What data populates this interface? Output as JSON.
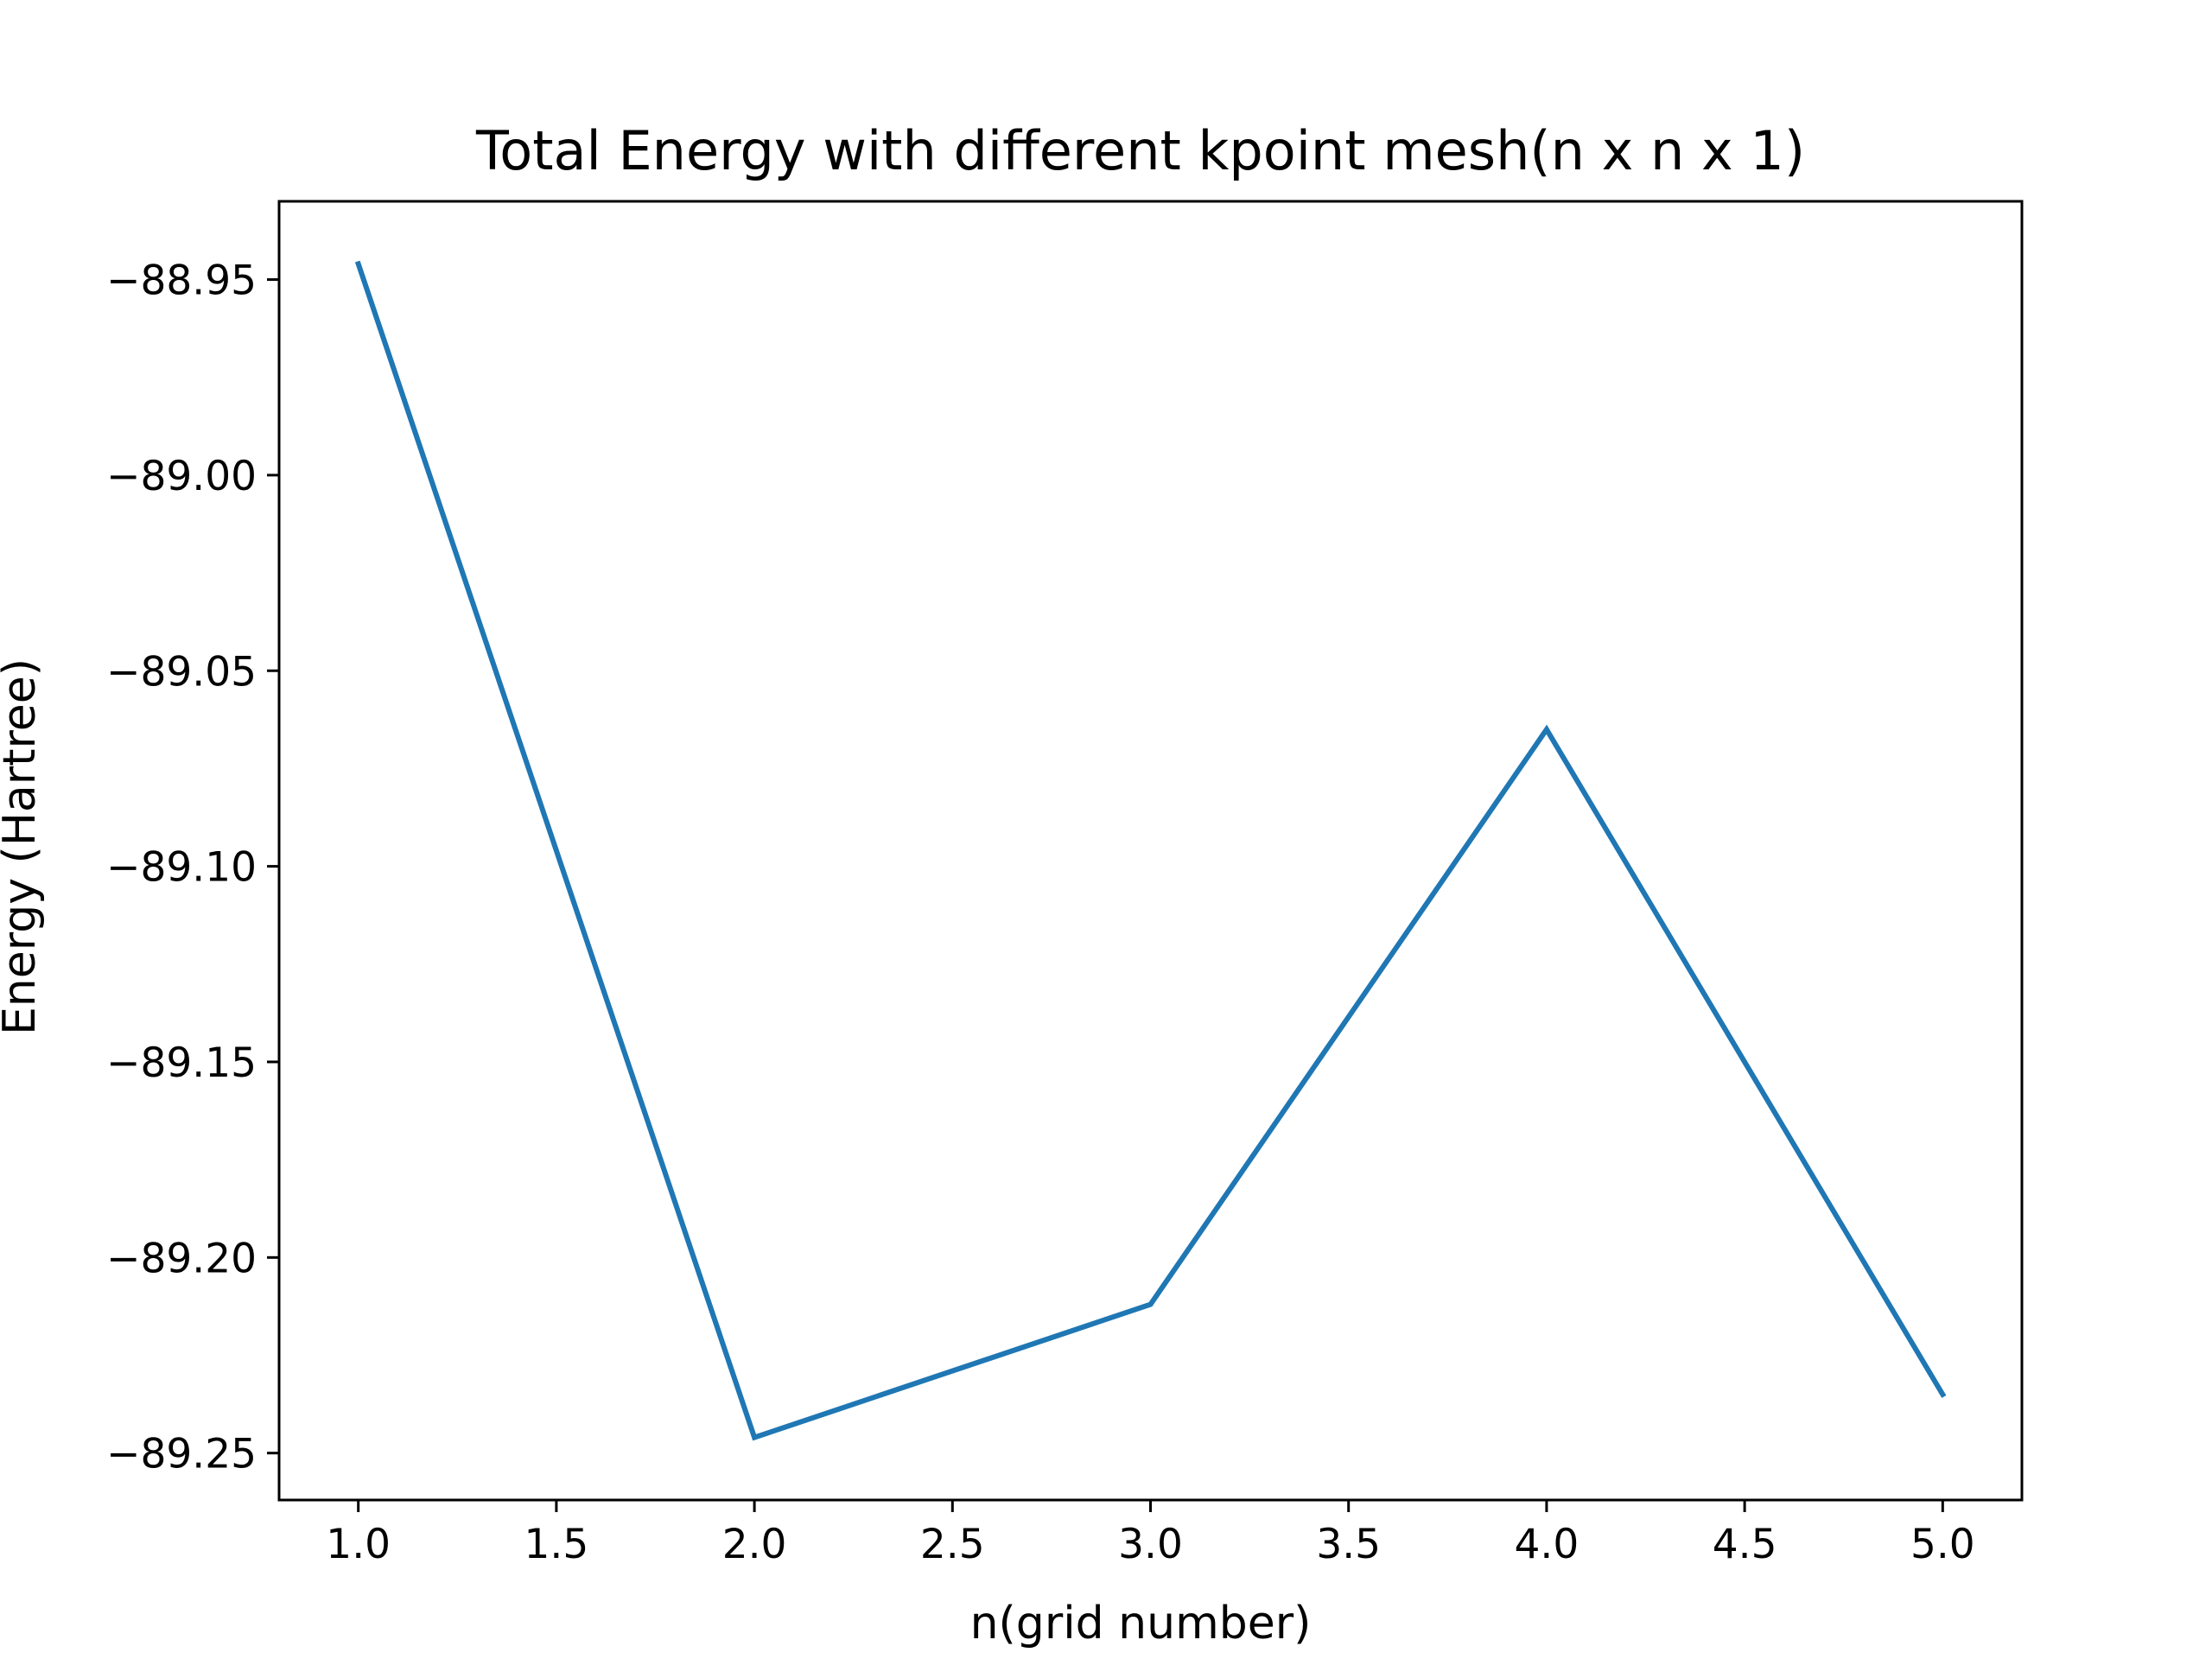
{
  "chart_data": {
    "type": "line",
    "title": "Total Energy with different kpoint mesh(n x n x 1)",
    "xlabel": "n(grid number)",
    "ylabel": "Energy (Hartree)",
    "xlim": [
      0.8,
      5.2
    ],
    "ylim": [
      -89.262,
      -88.93
    ],
    "x_ticks": [
      1.0,
      1.5,
      2.0,
      2.5,
      3.0,
      3.5,
      4.0,
      4.5,
      5.0
    ],
    "x_tick_labels": [
      "1.0",
      "1.5",
      "2.0",
      "2.5",
      "3.0",
      "3.5",
      "4.0",
      "4.5",
      "5.0"
    ],
    "y_ticks": [
      -88.95,
      -89.0,
      -89.05,
      -89.1,
      -89.15,
      -89.2,
      -89.25
    ],
    "y_tick_labels": [
      "−88.95",
      "−89.00",
      "−89.05",
      "−89.10",
      "−89.15",
      "−89.20",
      "−89.25"
    ],
    "grid": false,
    "series": [
      {
        "color": "#1f77b4",
        "x": [
          1,
          2,
          3,
          4,
          5
        ],
        "y": [
          -88.946,
          -89.246,
          -89.212,
          -89.065,
          -89.235
        ]
      }
    ]
  }
}
